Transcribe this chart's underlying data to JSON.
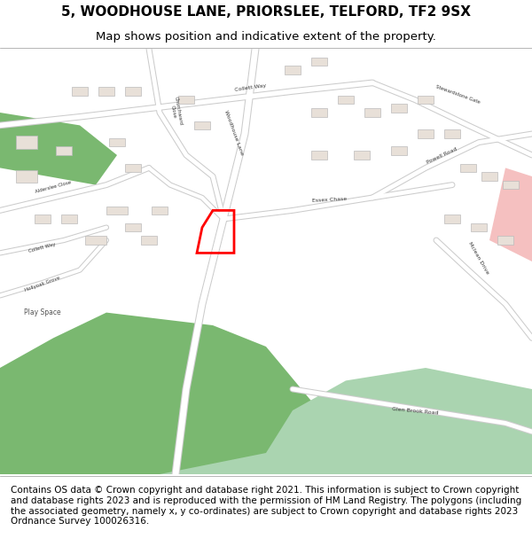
{
  "title_line1": "5, WOODHOUSE LANE, PRIORSLEE, TELFORD, TF2 9SX",
  "title_line2": "Map shows position and indicative extent of the property.",
  "footer_text": "Contains OS data © Crown copyright and database right 2021. This information is subject to Crown copyright and database rights 2023 and is reproduced with the permission of HM Land Registry. The polygons (including the associated geometry, namely x, y co-ordinates) are subject to Crown copyright and database rights 2023 Ordnance Survey 100026316.",
  "title_fontsize": 11,
  "subtitle_fontsize": 9.5,
  "footer_fontsize": 7.5,
  "map_bg_color": "#f0ede8",
  "road_color": "#ffffff",
  "road_outline_color": "#cccccc",
  "green_color": "#7ab870",
  "water_color": "#aad4b0",
  "building_color": "#e8e0d8",
  "building_outline": "#bbbbbb",
  "highlight_color": "#ff0000",
  "pink_area": "#f5c0c0",
  "header_bg": "#ffffff",
  "footer_bg": "#ffffff",
  "buildings_upper_left": [
    [
      5,
      78,
      4,
      3,
      0
    ],
    [
      12,
      76,
      3,
      2,
      -5
    ],
    [
      5,
      70,
      4,
      3,
      0
    ],
    [
      13,
      60,
      3,
      2,
      5
    ],
    [
      8,
      60,
      3,
      2,
      5
    ],
    [
      22,
      78,
      3,
      2,
      8
    ],
    [
      25,
      72,
      3,
      2,
      8
    ]
  ],
  "buildings_upper_center": [
    [
      20,
      90,
      3,
      2,
      5
    ],
    [
      15,
      90,
      3,
      2,
      5
    ],
    [
      25,
      90,
      3,
      2,
      5
    ],
    [
      55,
      95,
      3,
      2,
      10
    ],
    [
      60,
      97,
      3,
      2,
      10
    ],
    [
      38,
      82,
      3,
      2,
      -10
    ],
    [
      35,
      88,
      3,
      2,
      5
    ]
  ],
  "buildings_right": [
    [
      60,
      75,
      3,
      2,
      0
    ],
    [
      68,
      75,
      3,
      2,
      0
    ],
    [
      75,
      76,
      3,
      2,
      0
    ],
    [
      80,
      80,
      3,
      2,
      0
    ],
    [
      85,
      80,
      3,
      2,
      0
    ],
    [
      60,
      85,
      3,
      2,
      0
    ],
    [
      65,
      88,
      3,
      2,
      0
    ],
    [
      70,
      85,
      3,
      2,
      0
    ],
    [
      75,
      86,
      3,
      2,
      0
    ],
    [
      80,
      88,
      3,
      2,
      0
    ],
    [
      85,
      60,
      3,
      2,
      0
    ],
    [
      90,
      58,
      3,
      2,
      0
    ],
    [
      95,
      55,
      3,
      2,
      0
    ],
    [
      88,
      72,
      3,
      2,
      0
    ],
    [
      92,
      70,
      3,
      2,
      0
    ],
    [
      96,
      68,
      3,
      2,
      0
    ]
  ],
  "buildings_left_woodhouse": [
    [
      22,
      62,
      4,
      2,
      -30
    ],
    [
      18,
      55,
      4,
      2,
      0
    ],
    [
      25,
      58,
      3,
      2,
      -5
    ],
    [
      30,
      62,
      3,
      2,
      -15
    ],
    [
      28,
      55,
      3,
      2,
      0
    ]
  ]
}
